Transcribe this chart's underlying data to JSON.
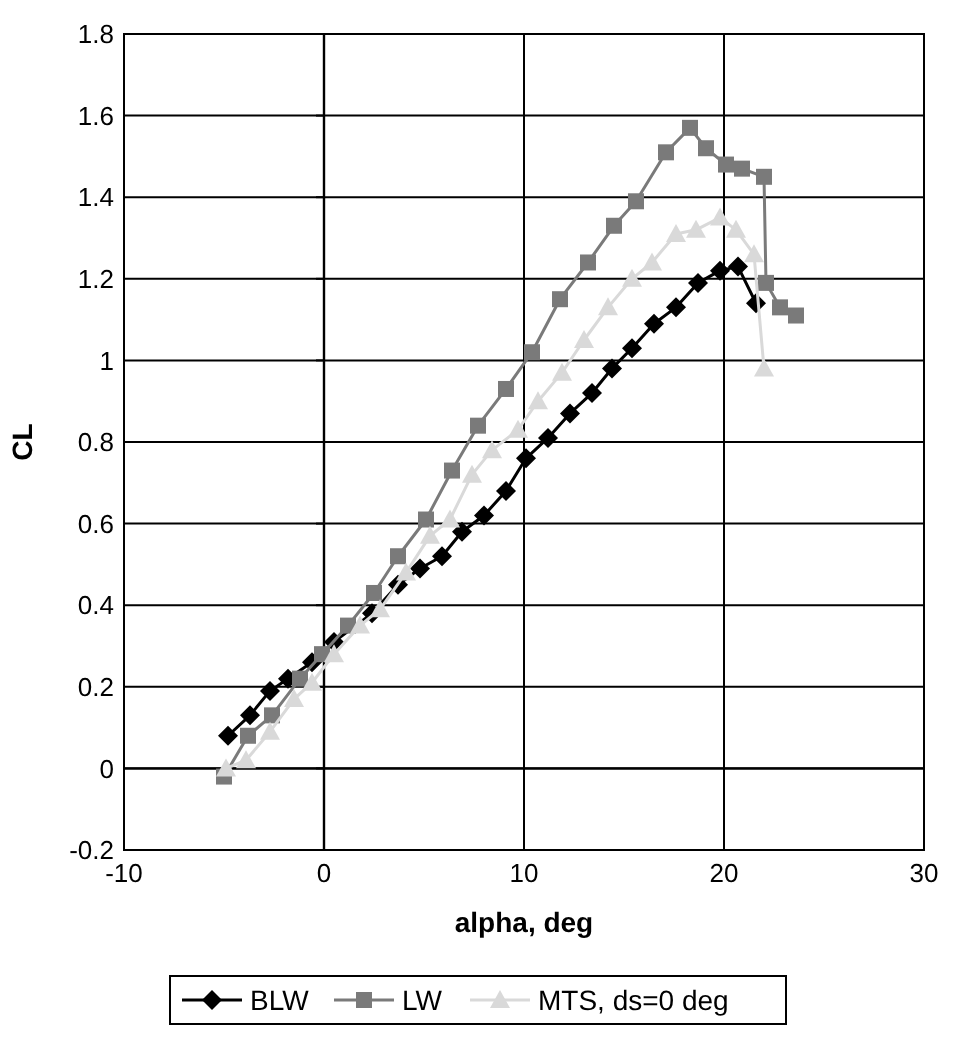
{
  "chart_data": {
    "type": "line",
    "xlabel": "alpha, deg",
    "ylabel": "CL",
    "xlim": [
      -10,
      30
    ],
    "xticks": [
      -10,
      0,
      10,
      20,
      30
    ],
    "ylim": [
      -0.2,
      1.8
    ],
    "yticks": [
      -0.2,
      0,
      0.2,
      0.4,
      0.6,
      0.8,
      1,
      1.2,
      1.4,
      1.6,
      1.8
    ],
    "grid": true,
    "legend": "bottom",
    "series": [
      {
        "name": "BLW",
        "color": "#000000",
        "marker": "diamond",
        "x": [
          -4.8,
          -3.7,
          -2.7,
          -1.8,
          -0.6,
          0.5,
          2.4,
          3.7,
          4.8,
          5.9,
          6.9,
          8.0,
          9.1,
          10.1,
          11.2,
          12.3,
          13.4,
          14.4,
          15.4,
          16.5,
          17.6,
          18.7,
          19.8,
          20.7,
          21.6
        ],
        "values": [
          0.08,
          0.13,
          0.19,
          0.22,
          0.26,
          0.31,
          0.38,
          0.45,
          0.49,
          0.52,
          0.58,
          0.62,
          0.68,
          0.76,
          0.81,
          0.87,
          0.92,
          0.98,
          1.03,
          1.09,
          1.13,
          1.19,
          1.22,
          1.23,
          1.14
        ]
      },
      {
        "name": "LW",
        "color": "#7a7a7a",
        "marker": "square",
        "x": [
          -5.0,
          -3.8,
          -2.6,
          -1.2,
          -0.1,
          1.2,
          2.5,
          3.7,
          5.1,
          6.4,
          7.7,
          9.1,
          10.4,
          11.8,
          13.2,
          14.5,
          15.6,
          17.1,
          18.3,
          19.1,
          20.1,
          20.9,
          22.0,
          22.1,
          22.8,
          23.6
        ],
        "values": [
          -0.02,
          0.08,
          0.13,
          0.22,
          0.28,
          0.35,
          0.43,
          0.52,
          0.61,
          0.73,
          0.84,
          0.93,
          1.02,
          1.15,
          1.24,
          1.33,
          1.39,
          1.51,
          1.57,
          1.52,
          1.48,
          1.47,
          1.45,
          1.19,
          1.13,
          1.11
        ]
      },
      {
        "name": "MTS, ds=0 deg",
        "color": "#d9d9d9",
        "marker": "triangle",
        "x": [
          -4.9,
          -3.9,
          -2.7,
          -1.5,
          -0.6,
          0.5,
          1.8,
          2.8,
          4.1,
          5.3,
          6.3,
          7.4,
          8.4,
          9.7,
          10.7,
          11.9,
          13.0,
          14.2,
          15.4,
          16.4,
          17.6,
          18.6,
          19.8,
          20.6,
          21.5,
          22.0
        ],
        "values": [
          0.0,
          0.02,
          0.09,
          0.17,
          0.21,
          0.28,
          0.35,
          0.39,
          0.48,
          0.57,
          0.61,
          0.72,
          0.78,
          0.83,
          0.9,
          0.97,
          1.05,
          1.13,
          1.2,
          1.24,
          1.31,
          1.32,
          1.35,
          1.32,
          1.26,
          0.98
        ]
      }
    ]
  }
}
